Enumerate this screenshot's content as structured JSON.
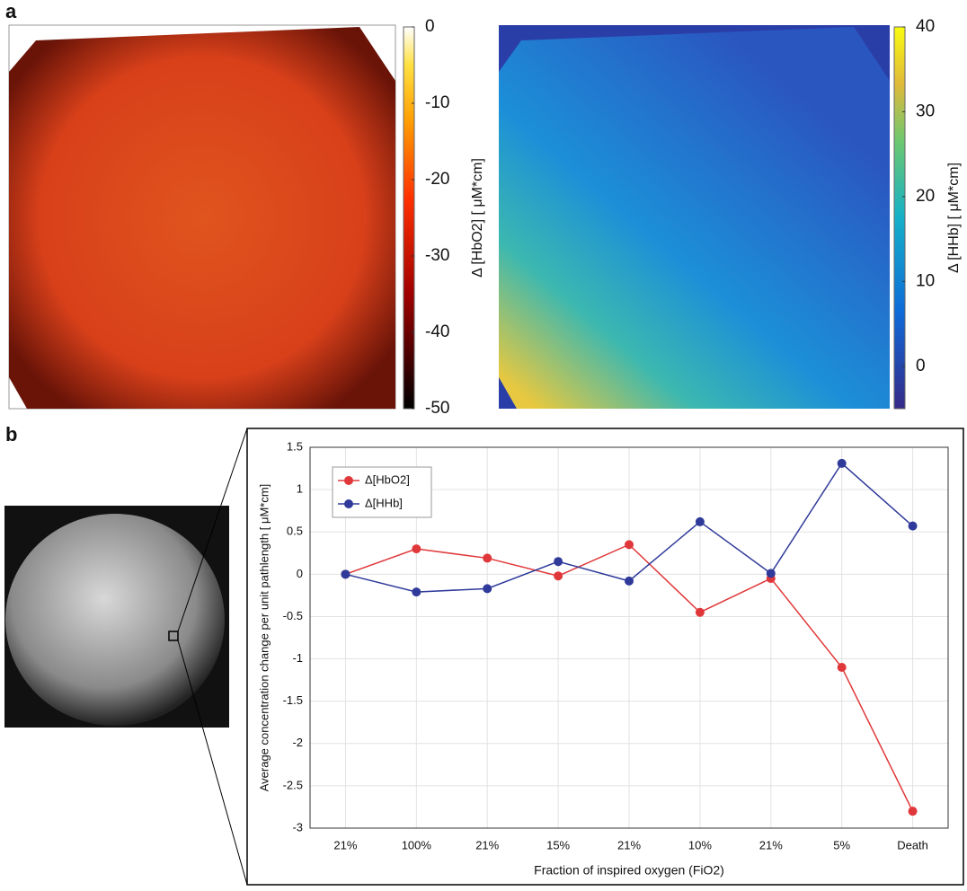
{
  "panels": [
    "a",
    "b"
  ],
  "chart_data": [
    {
      "type": "colorbar",
      "label": "Δ [HbO2] [ μM*cm]",
      "ylim": [
        -50,
        0
      ],
      "yticks": [
        0,
        -10,
        -20,
        -30,
        -40,
        -50
      ]
    },
    {
      "type": "colorbar",
      "label": "Δ [HHb] [ μM*cm]",
      "ylim": [
        -5,
        40
      ],
      "yticks": [
        40,
        30,
        20,
        10,
        0
      ]
    },
    {
      "type": "line",
      "xlabel": "Fraction of inspired oxygen (FiO2)",
      "ylabel": "Average concentration change per unit pathlength [ μM*cm]",
      "categories": [
        "21%",
        "100%",
        "21%",
        "15%",
        "21%",
        "10%",
        "21%",
        "5%",
        "Death"
      ],
      "series": [
        {
          "name": "Δ[HbO2]",
          "color": "#e0383a",
          "values": [
            0,
            0.3,
            0.19,
            -0.02,
            0.35,
            -0.45,
            -0.05,
            -1.1,
            -2.8
          ]
        },
        {
          "name": "Δ[HHb]",
          "color": "#2f3a9a",
          "values": [
            0,
            -0.21,
            -0.17,
            0.15,
            -0.08,
            0.62,
            0.01,
            1.31,
            0.57
          ]
        }
      ],
      "ylim": [
        -3,
        1.5
      ],
      "yticks": [
        -3,
        -2.5,
        -2,
        -1.5,
        -1,
        -0.5,
        0,
        0.5,
        1,
        1.5
      ],
      "grid": true,
      "legend": "upper left"
    }
  ]
}
